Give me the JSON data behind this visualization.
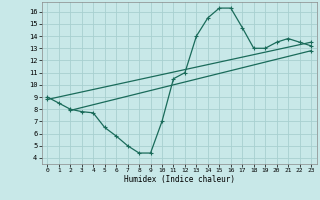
{
  "xlabel": "Humidex (Indice chaleur)",
  "background_color": "#c8e8e8",
  "grid_color": "#a8d0d0",
  "line_color": "#1a6b5a",
  "xlim": [
    -0.5,
    23.5
  ],
  "ylim": [
    3.5,
    16.8
  ],
  "yticks": [
    4,
    5,
    6,
    7,
    8,
    9,
    10,
    11,
    12,
    13,
    14,
    15,
    16
  ],
  "xticks": [
    0,
    1,
    2,
    3,
    4,
    5,
    6,
    7,
    8,
    9,
    10,
    11,
    12,
    13,
    14,
    15,
    16,
    17,
    18,
    19,
    20,
    21,
    22,
    23
  ],
  "line1_x": [
    0,
    1,
    2,
    3,
    4,
    5,
    6,
    7,
    8,
    9,
    10,
    11,
    12,
    13,
    14,
    15,
    16,
    17,
    18,
    19,
    20,
    21,
    22,
    23
  ],
  "line1_y": [
    9.0,
    8.5,
    8.0,
    7.8,
    7.7,
    6.5,
    5.8,
    5.0,
    4.4,
    4.4,
    7.0,
    10.5,
    11.0,
    14.0,
    15.5,
    16.3,
    16.3,
    14.7,
    13.0,
    13.0,
    13.5,
    13.8,
    13.5,
    13.2
  ],
  "line2_x": [
    0,
    23
  ],
  "line2_y": [
    8.8,
    13.5
  ],
  "line3_x": [
    2,
    23
  ],
  "line3_y": [
    7.9,
    12.8
  ]
}
